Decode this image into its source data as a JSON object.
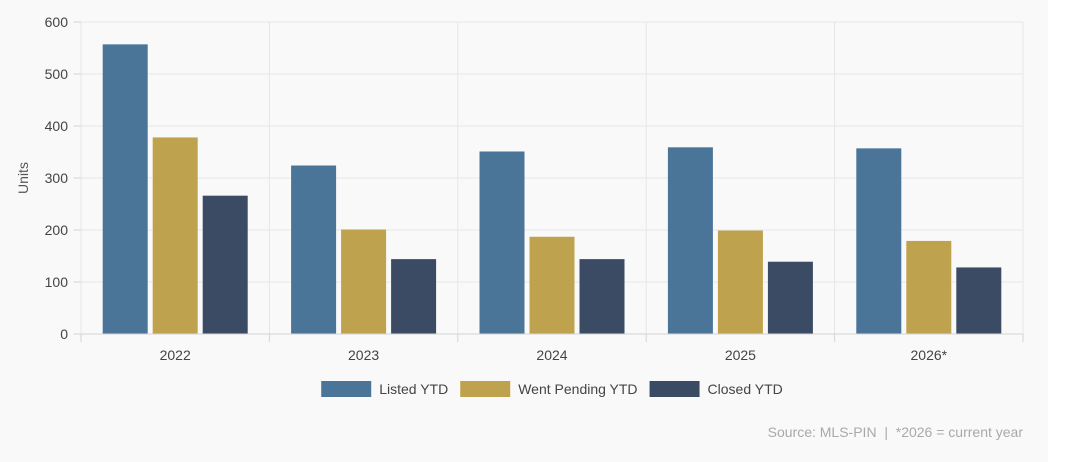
{
  "chart_data": {
    "type": "bar",
    "ylabel": "Units",
    "ylim": [
      0,
      600
    ],
    "yticks": [
      0,
      100,
      200,
      300,
      400,
      500,
      600
    ],
    "categories": [
      "2022",
      "2023",
      "2024",
      "2025",
      "2026*"
    ],
    "series": [
      {
        "name": "Listed YTD",
        "color": "#4a7599",
        "values": [
          557,
          324,
          351,
          359,
          357
        ]
      },
      {
        "name": "Went Pending YTD",
        "color": "#bfa24e",
        "values": [
          378,
          201,
          187,
          199,
          179
        ]
      },
      {
        "name": "Closed YTD",
        "color": "#3b4b63",
        "values": [
          266,
          144,
          144,
          139,
          128
        ]
      }
    ],
    "grid": true,
    "legend_position": "bottom"
  },
  "footer": {
    "source": "Source: MLS-PIN  |  *2026 = current year"
  }
}
